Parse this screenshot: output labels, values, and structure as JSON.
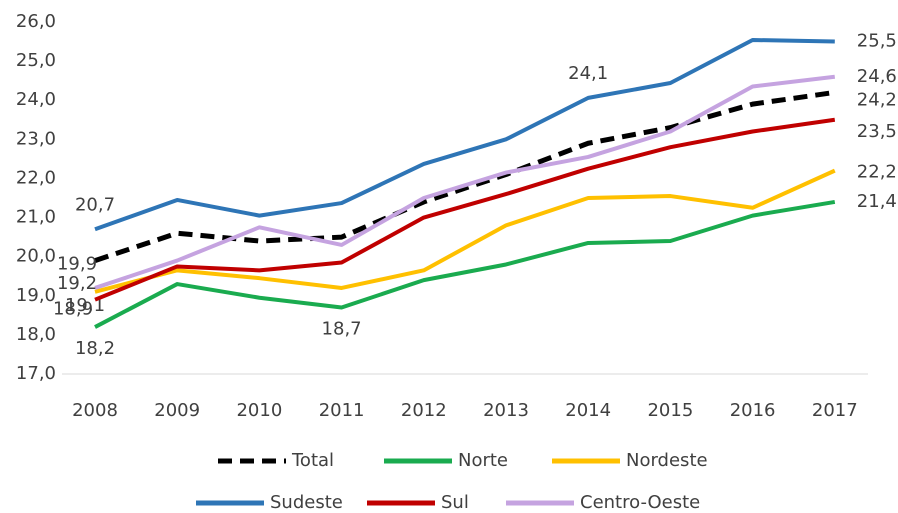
{
  "chart_data": {
    "type": "line",
    "categories": [
      "2008",
      "2009",
      "2010",
      "2011",
      "2012",
      "2013",
      "2014",
      "2015",
      "2016",
      "2017"
    ],
    "ylim": [
      17,
      26
    ],
    "yticks": [
      {
        "value": 17,
        "label": "17,0"
      },
      {
        "value": 18,
        "label": "18,0"
      },
      {
        "value": 19,
        "label": "19,0"
      },
      {
        "value": 20,
        "label": "20,0"
      },
      {
        "value": 21,
        "label": "21,0"
      },
      {
        "value": 22,
        "label": "22,0"
      },
      {
        "value": 23,
        "label": "23,0"
      },
      {
        "value": 24,
        "label": "24,0"
      },
      {
        "value": 25,
        "label": "25,0"
      },
      {
        "value": 26,
        "label": "26,0"
      }
    ],
    "grid": false,
    "legend": "bottom",
    "series": [
      {
        "name": "Total",
        "color": "#000000",
        "dashed": true,
        "values": [
          19.9,
          20.6,
          20.4,
          20.5,
          21.4,
          22.1,
          22.9,
          23.3,
          23.9,
          24.2
        ],
        "value_labels": [
          "19,9",
          null,
          null,
          null,
          null,
          null,
          null,
          null,
          null,
          "24,2"
        ]
      },
      {
        "name": "Norte",
        "color": "#1aab4f",
        "values": [
          18.2,
          19.3,
          18.95,
          18.7,
          19.4,
          19.8,
          20.35,
          20.4,
          21.05,
          21.4
        ],
        "value_labels": [
          "18,2",
          null,
          null,
          "18,7",
          null,
          null,
          null,
          null,
          null,
          "21,4"
        ]
      },
      {
        "name": "Nordeste",
        "color": "#ffc000",
        "values": [
          19.1,
          19.65,
          19.45,
          19.2,
          19.65,
          20.8,
          21.5,
          21.55,
          21.25,
          22.2
        ],
        "value_labels": [
          "19,1",
          null,
          null,
          null,
          null,
          null,
          null,
          null,
          null,
          "22,2"
        ]
      },
      {
        "name": "Sudeste",
        "color": "#2e75b6",
        "values": [
          20.7,
          21.45,
          21.05,
          21.37,
          22.37,
          23.0,
          24.06,
          24.44,
          25.54,
          25.5
        ],
        "value_labels": [
          "20,7",
          null,
          null,
          null,
          null,
          null,
          "24,1",
          null,
          null,
          "25,5"
        ]
      },
      {
        "name": "Sul",
        "color": "#c00000",
        "values": [
          18.9,
          19.75,
          19.65,
          19.85,
          21.0,
          21.6,
          22.25,
          22.8,
          23.2,
          23.5
        ],
        "value_labels": [
          "18,9",
          null,
          null,
          null,
          null,
          null,
          null,
          null,
          null,
          "23,5"
        ]
      },
      {
        "name": "Centro-Oeste",
        "color": "#c5a3e0",
        "values": [
          19.2,
          19.9,
          20.75,
          20.3,
          21.5,
          22.15,
          22.55,
          23.2,
          24.35,
          24.6
        ],
        "value_labels": [
          "19,2",
          null,
          null,
          null,
          null,
          null,
          null,
          null,
          null,
          "24,6"
        ]
      }
    ]
  }
}
